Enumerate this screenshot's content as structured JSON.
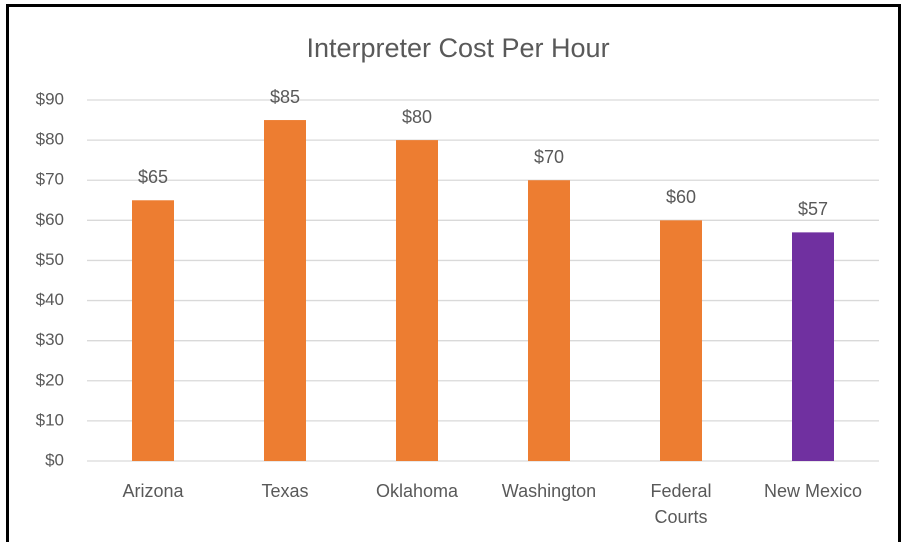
{
  "chart_data": {
    "type": "bar",
    "title": "Interpreter Cost Per Hour",
    "categories": [
      "Arizona",
      "Texas",
      "Oklahoma",
      "Washington",
      "Federal Courts",
      "New Mexico"
    ],
    "values": [
      65,
      85,
      80,
      70,
      60,
      57
    ],
    "value_labels": [
      "$65",
      "$85",
      "$80",
      "$70",
      "$60",
      "$57"
    ],
    "colors": [
      "#ed7d31",
      "#ed7d31",
      "#ed7d31",
      "#ed7d31",
      "#ed7d31",
      "#7030a0"
    ],
    "ylim": [
      0,
      90
    ],
    "yticks": [
      {
        "value": 0,
        "label": "$0"
      },
      {
        "value": 10,
        "label": "$10"
      },
      {
        "value": 20,
        "label": "$20"
      },
      {
        "value": 30,
        "label": "$30"
      },
      {
        "value": 40,
        "label": "$40"
      },
      {
        "value": 50,
        "label": "$50"
      },
      {
        "value": 60,
        "label": "$60"
      },
      {
        "value": 70,
        "label": "$70"
      },
      {
        "value": 80,
        "label": "$80"
      },
      {
        "value": 90,
        "label": "$90"
      }
    ],
    "grid": true
  }
}
